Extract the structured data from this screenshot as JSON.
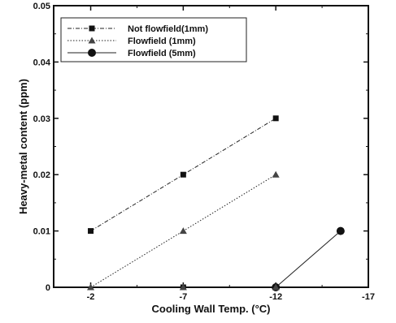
{
  "chart_data": {
    "type": "line",
    "title": "",
    "xlabel": "Cooling Wall Temp. (°C)",
    "ylabel": "Heavy-metal content (ppm)",
    "xlim": [
      0,
      -17
    ],
    "ylim": [
      0,
      0.05
    ],
    "xticks": [
      "-2",
      "-7",
      "-12",
      "-17"
    ],
    "yticks": [
      "0",
      "0.01",
      "0.02",
      "0.03",
      "0.04",
      "0.05"
    ],
    "grid": false,
    "legend_position": "top-left",
    "series": [
      {
        "name": "Not flowfield(1mm)",
        "marker": "square",
        "line_style": "dashdot",
        "x": [
          -2,
          -7,
          -12
        ],
        "y": [
          0.01,
          0.02,
          0.03
        ]
      },
      {
        "name": "Flowfield (1mm)",
        "marker": "triangle",
        "line_style": "dotted",
        "x": [
          -2,
          -7,
          -12
        ],
        "y": [
          0.0,
          0.01,
          0.02
        ]
      },
      {
        "name": "Flowfield (5mm)",
        "marker": "circle",
        "line_style": "solid",
        "x": [
          -12,
          -15.5
        ],
        "y": [
          0.0,
          0.01
        ]
      }
    ],
    "extra_markers": [
      {
        "series": 0,
        "x": -7,
        "y": 0.0
      },
      {
        "series": 1,
        "x": -7,
        "y": 0.0
      },
      {
        "series": 1,
        "x": -12,
        "y": 0.0
      }
    ]
  }
}
